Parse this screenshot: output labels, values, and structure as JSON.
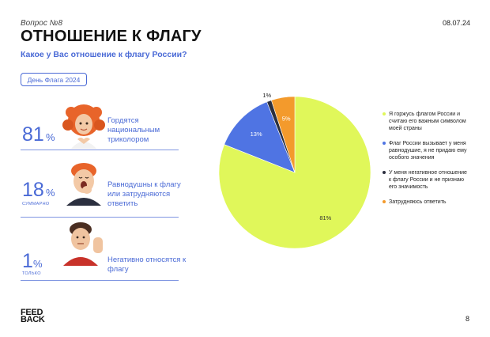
{
  "header": {
    "question_number": "Вопрос №8",
    "date": "08.07.24",
    "title": "ОТНОШЕНИЕ К ФЛАГУ",
    "subtitle": "Какое у Вас отношение к флагу России?"
  },
  "badge": "День Флага 2024",
  "stats": [
    {
      "value": "81",
      "unit": "%",
      "qualifier": "",
      "label": "Гордятся национальным триколором",
      "avatar": "proud-woman-avatar"
    },
    {
      "value": "18",
      "unit": "%",
      "qualifier": "СУММАРНО",
      "label": "Равнодушны к флагу или затрудняются ответить",
      "avatar": "yawning-man-avatar"
    },
    {
      "value": "1",
      "unit": "%",
      "qualifier": "ТОЛЬКО",
      "label": "Негативно относятся к флагу",
      "avatar": "stop-hand-man-avatar"
    }
  ],
  "chart_data": {
    "type": "pie",
    "slices": [
      {
        "label": "Я горжусь флагом России и считаю его важным символом моей страны",
        "value": 81,
        "data_label": "81%",
        "color": "#e0f75a"
      },
      {
        "label": "Флаг России вызывает у меня равнодушие, я не придаю ему особого значения",
        "value": 13,
        "data_label": "13%",
        "color": "#4f74e3"
      },
      {
        "label": "У меня негативное отношение к флагу России и не признаю его значимость",
        "value": 1,
        "data_label": "1%",
        "color": "#2b2f3f"
      },
      {
        "label": "Затрудняюсь ответить",
        "value": 5,
        "data_label": "5%",
        "color": "#f39a2c"
      }
    ],
    "legend_position": "right"
  },
  "footer": {
    "logo": "FEEDBACK",
    "logo_line1": "FEED",
    "logo_line2": "BACK",
    "page_number": "8"
  }
}
